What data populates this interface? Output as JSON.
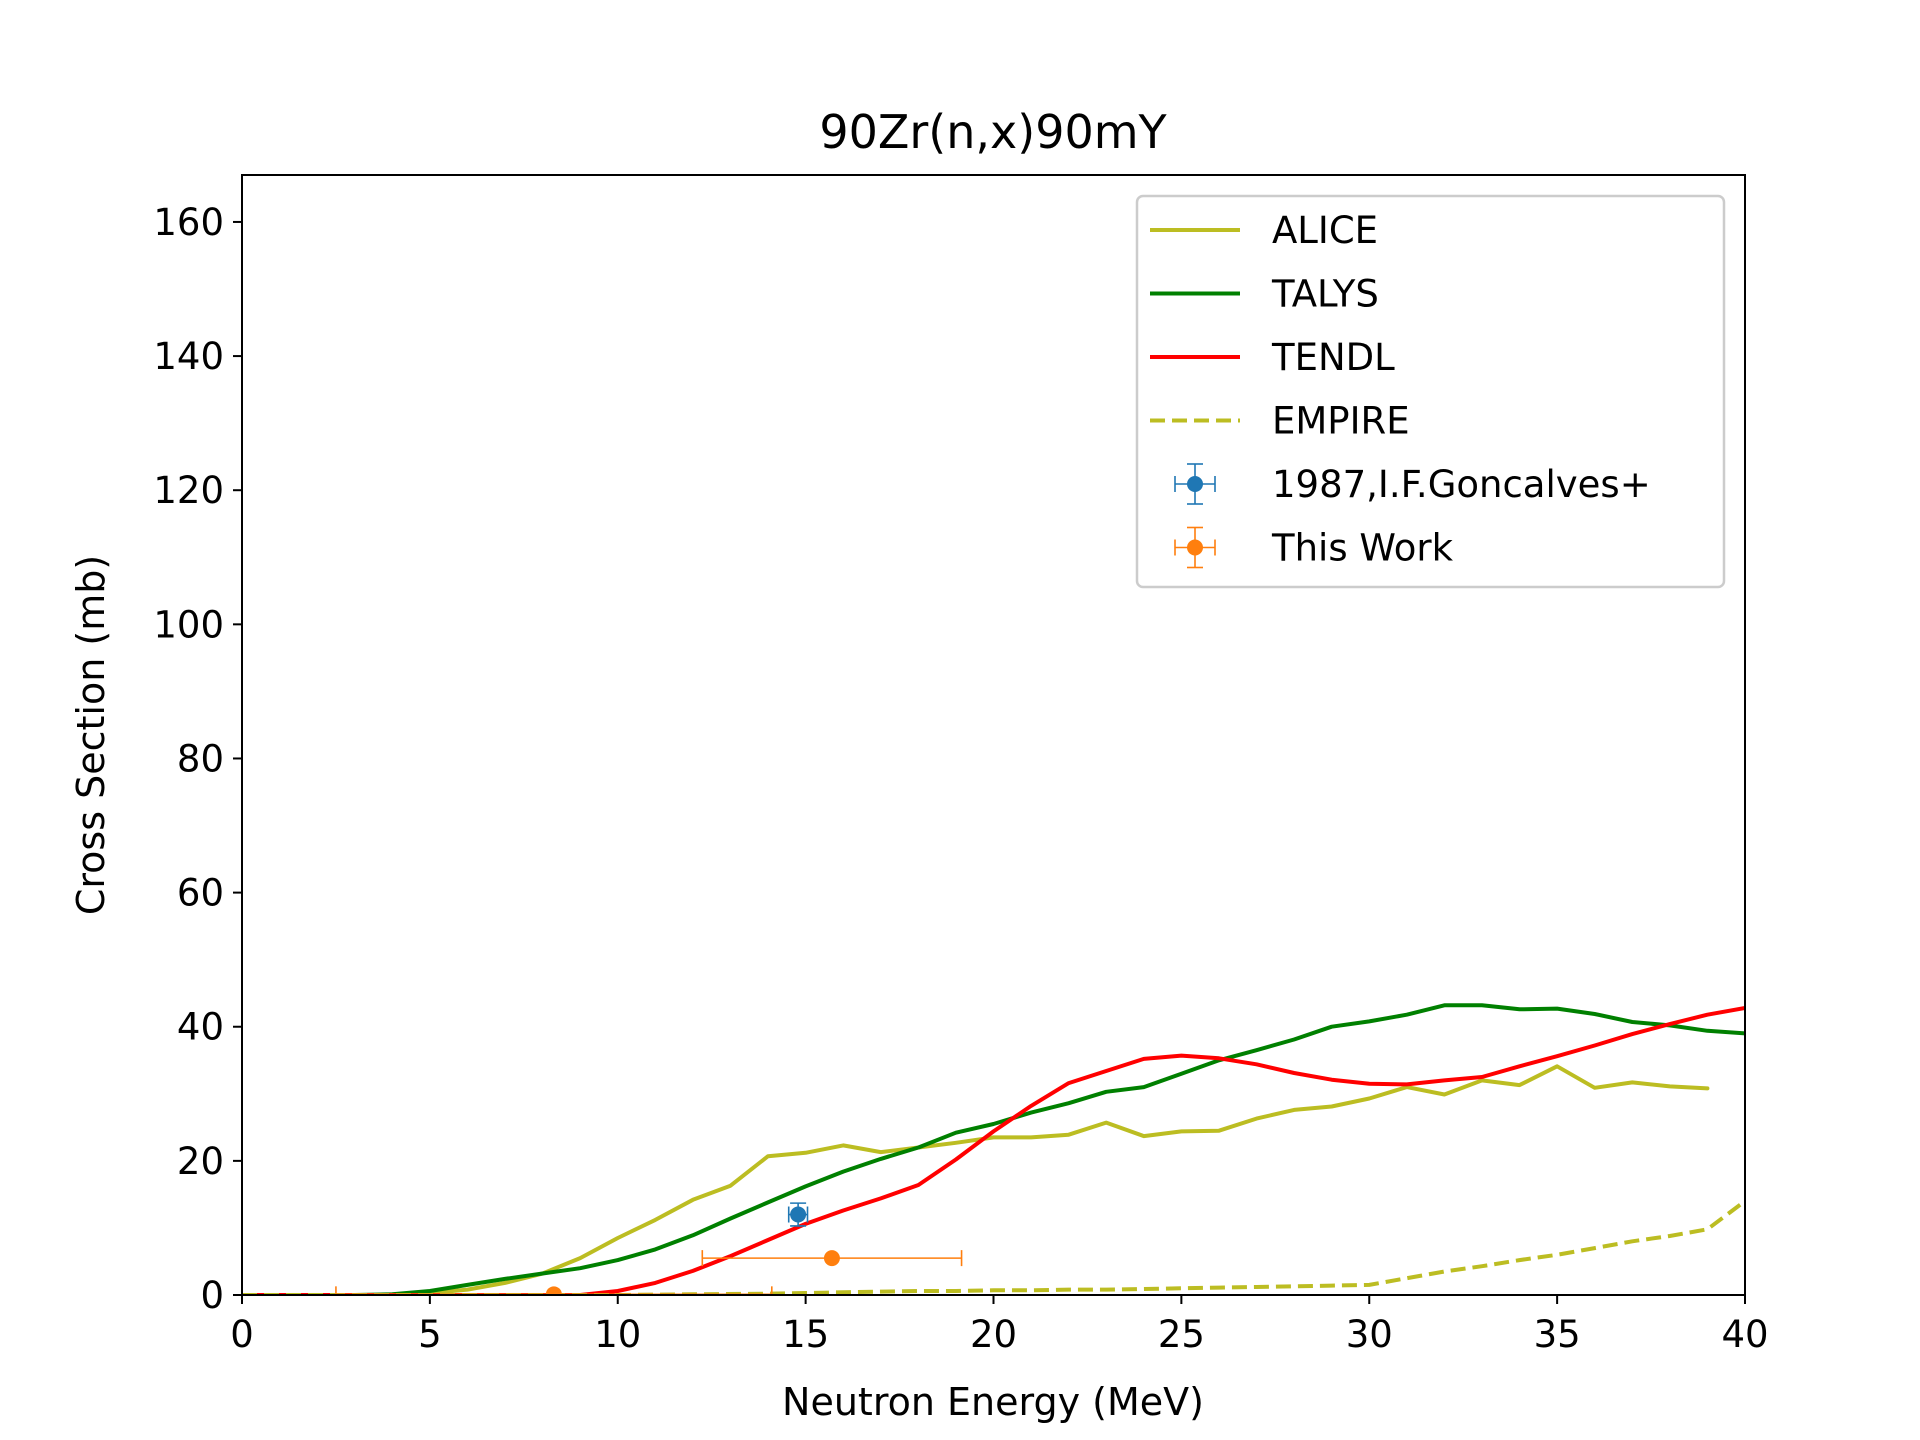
{
  "chart_data": {
    "type": "line",
    "title": "90Zr(n,x)90mY",
    "xlabel": "Neutron Energy (MeV)",
    "ylabel": "Cross Section (mb)",
    "xlim": [
      0,
      40
    ],
    "ylim": [
      0,
      167
    ],
    "xticks": [
      0,
      5,
      10,
      15,
      20,
      25,
      30,
      35,
      40
    ],
    "yticks": [
      0,
      20,
      40,
      60,
      80,
      100,
      120,
      140,
      160
    ],
    "grid": false,
    "legend_position": "top-right",
    "series": [
      {
        "name": "ALICE",
        "color": "#bcbd22",
        "style": "solid",
        "x": [
          0,
          1,
          2,
          3,
          4,
          5,
          6,
          7,
          8,
          9,
          10,
          11,
          12,
          13,
          14,
          15,
          16,
          17,
          18,
          19,
          20,
          21,
          22,
          23,
          24,
          25,
          26,
          27,
          28,
          29,
          30,
          31,
          32,
          33,
          34,
          35,
          36,
          37,
          38,
          39
        ],
        "y": [
          0,
          0,
          0,
          0,
          0,
          0.3,
          0.8,
          1.8,
          3.2,
          5.5,
          8.5,
          11.2,
          14.2,
          16.3,
          20.7,
          21.2,
          22.3,
          21.3,
          22.0,
          22.7,
          23.5,
          23.5,
          23.9,
          25.7,
          23.7,
          24.4,
          24.5,
          26.3,
          27.6,
          28.1,
          29.3,
          31.0,
          29.9,
          32.0,
          31.3,
          34.1,
          30.9,
          31.7,
          31.1,
          30.8
        ]
      },
      {
        "name": "TALYS",
        "color": "#008000",
        "style": "solid",
        "x": [
          0,
          1,
          2,
          3,
          4,
          5,
          6,
          7,
          8,
          9,
          10,
          11,
          12,
          13,
          14,
          15,
          16,
          17,
          18,
          19,
          20,
          21,
          22,
          23,
          24,
          25,
          26,
          27,
          28,
          29,
          30,
          31,
          32,
          33,
          34,
          35,
          36,
          37,
          38,
          39,
          40
        ],
        "y": [
          0,
          0,
          0,
          0,
          0.1,
          0.6,
          1.5,
          2.4,
          3.2,
          4.0,
          5.2,
          6.8,
          8.9,
          11.4,
          13.8,
          16.2,
          18.4,
          20.3,
          22.0,
          24.2,
          25.5,
          27.2,
          28.6,
          30.3,
          31.0,
          33.0,
          35.0,
          36.5,
          38.1,
          40.0,
          40.8,
          41.8,
          43.2,
          43.2,
          42.6,
          42.7,
          41.9,
          40.7,
          40.2,
          39.4,
          39.0
        ]
      },
      {
        "name": "TENDL",
        "color": "#ff0000",
        "style": "solid",
        "x": [
          0,
          1,
          2,
          3,
          4,
          5,
          6,
          7,
          8,
          9,
          10,
          11,
          12,
          13,
          14,
          15,
          16,
          17,
          18,
          19,
          20,
          21,
          22,
          23,
          24,
          25,
          26,
          27,
          28,
          29,
          30,
          31,
          32,
          33,
          34,
          35,
          36,
          37,
          38,
          39,
          40
        ],
        "y": [
          0,
          0,
          0,
          0,
          0,
          0,
          0,
          0,
          0,
          0,
          0.6,
          1.8,
          3.6,
          5.8,
          8.2,
          10.6,
          12.6,
          14.4,
          16.4,
          20.2,
          24.4,
          28.2,
          31.6,
          33.4,
          35.2,
          35.7,
          35.3,
          34.4,
          33.1,
          32.1,
          31.5,
          31.4,
          32.0,
          32.5,
          34.1,
          35.6,
          37.2,
          38.9,
          40.4,
          41.8,
          42.8
        ]
      },
      {
        "name": "EMPIRE",
        "color": "#bcbd22",
        "style": "dashed",
        "x": [
          0,
          5,
          10,
          12,
          14,
          15,
          16,
          17,
          18,
          19,
          20,
          21,
          22,
          23,
          24,
          25,
          26,
          27,
          28,
          29,
          30,
          31,
          32,
          33,
          34,
          35,
          36,
          37,
          38,
          39,
          40
        ],
        "y": [
          0,
          0,
          0,
          0.1,
          0.2,
          0.3,
          0.4,
          0.5,
          0.6,
          0.6,
          0.7,
          0.7,
          0.8,
          0.8,
          0.9,
          1.0,
          1.1,
          1.2,
          1.3,
          1.4,
          1.5,
          2.5,
          3.5,
          4.3,
          5.2,
          6.0,
          7.0,
          8.0,
          8.8,
          9.8,
          14.0
        ]
      }
    ],
    "error_series": [
      {
        "name": "1987,I.F.Goncalves+",
        "color": "#1f77b4",
        "points": [
          {
            "x": 14.8,
            "y": 12.0,
            "xerr": 0.25,
            "yerr": 1.7
          }
        ]
      },
      {
        "name": "This Work",
        "color": "#ff7f0e",
        "points": [
          {
            "x": 15.7,
            "y": 5.5,
            "xerr": 3.45,
            "yerr": 0
          },
          {
            "x": 8.3,
            "y": 0.1,
            "xerr": 5.8,
            "yerr": 0
          }
        ]
      }
    ]
  }
}
